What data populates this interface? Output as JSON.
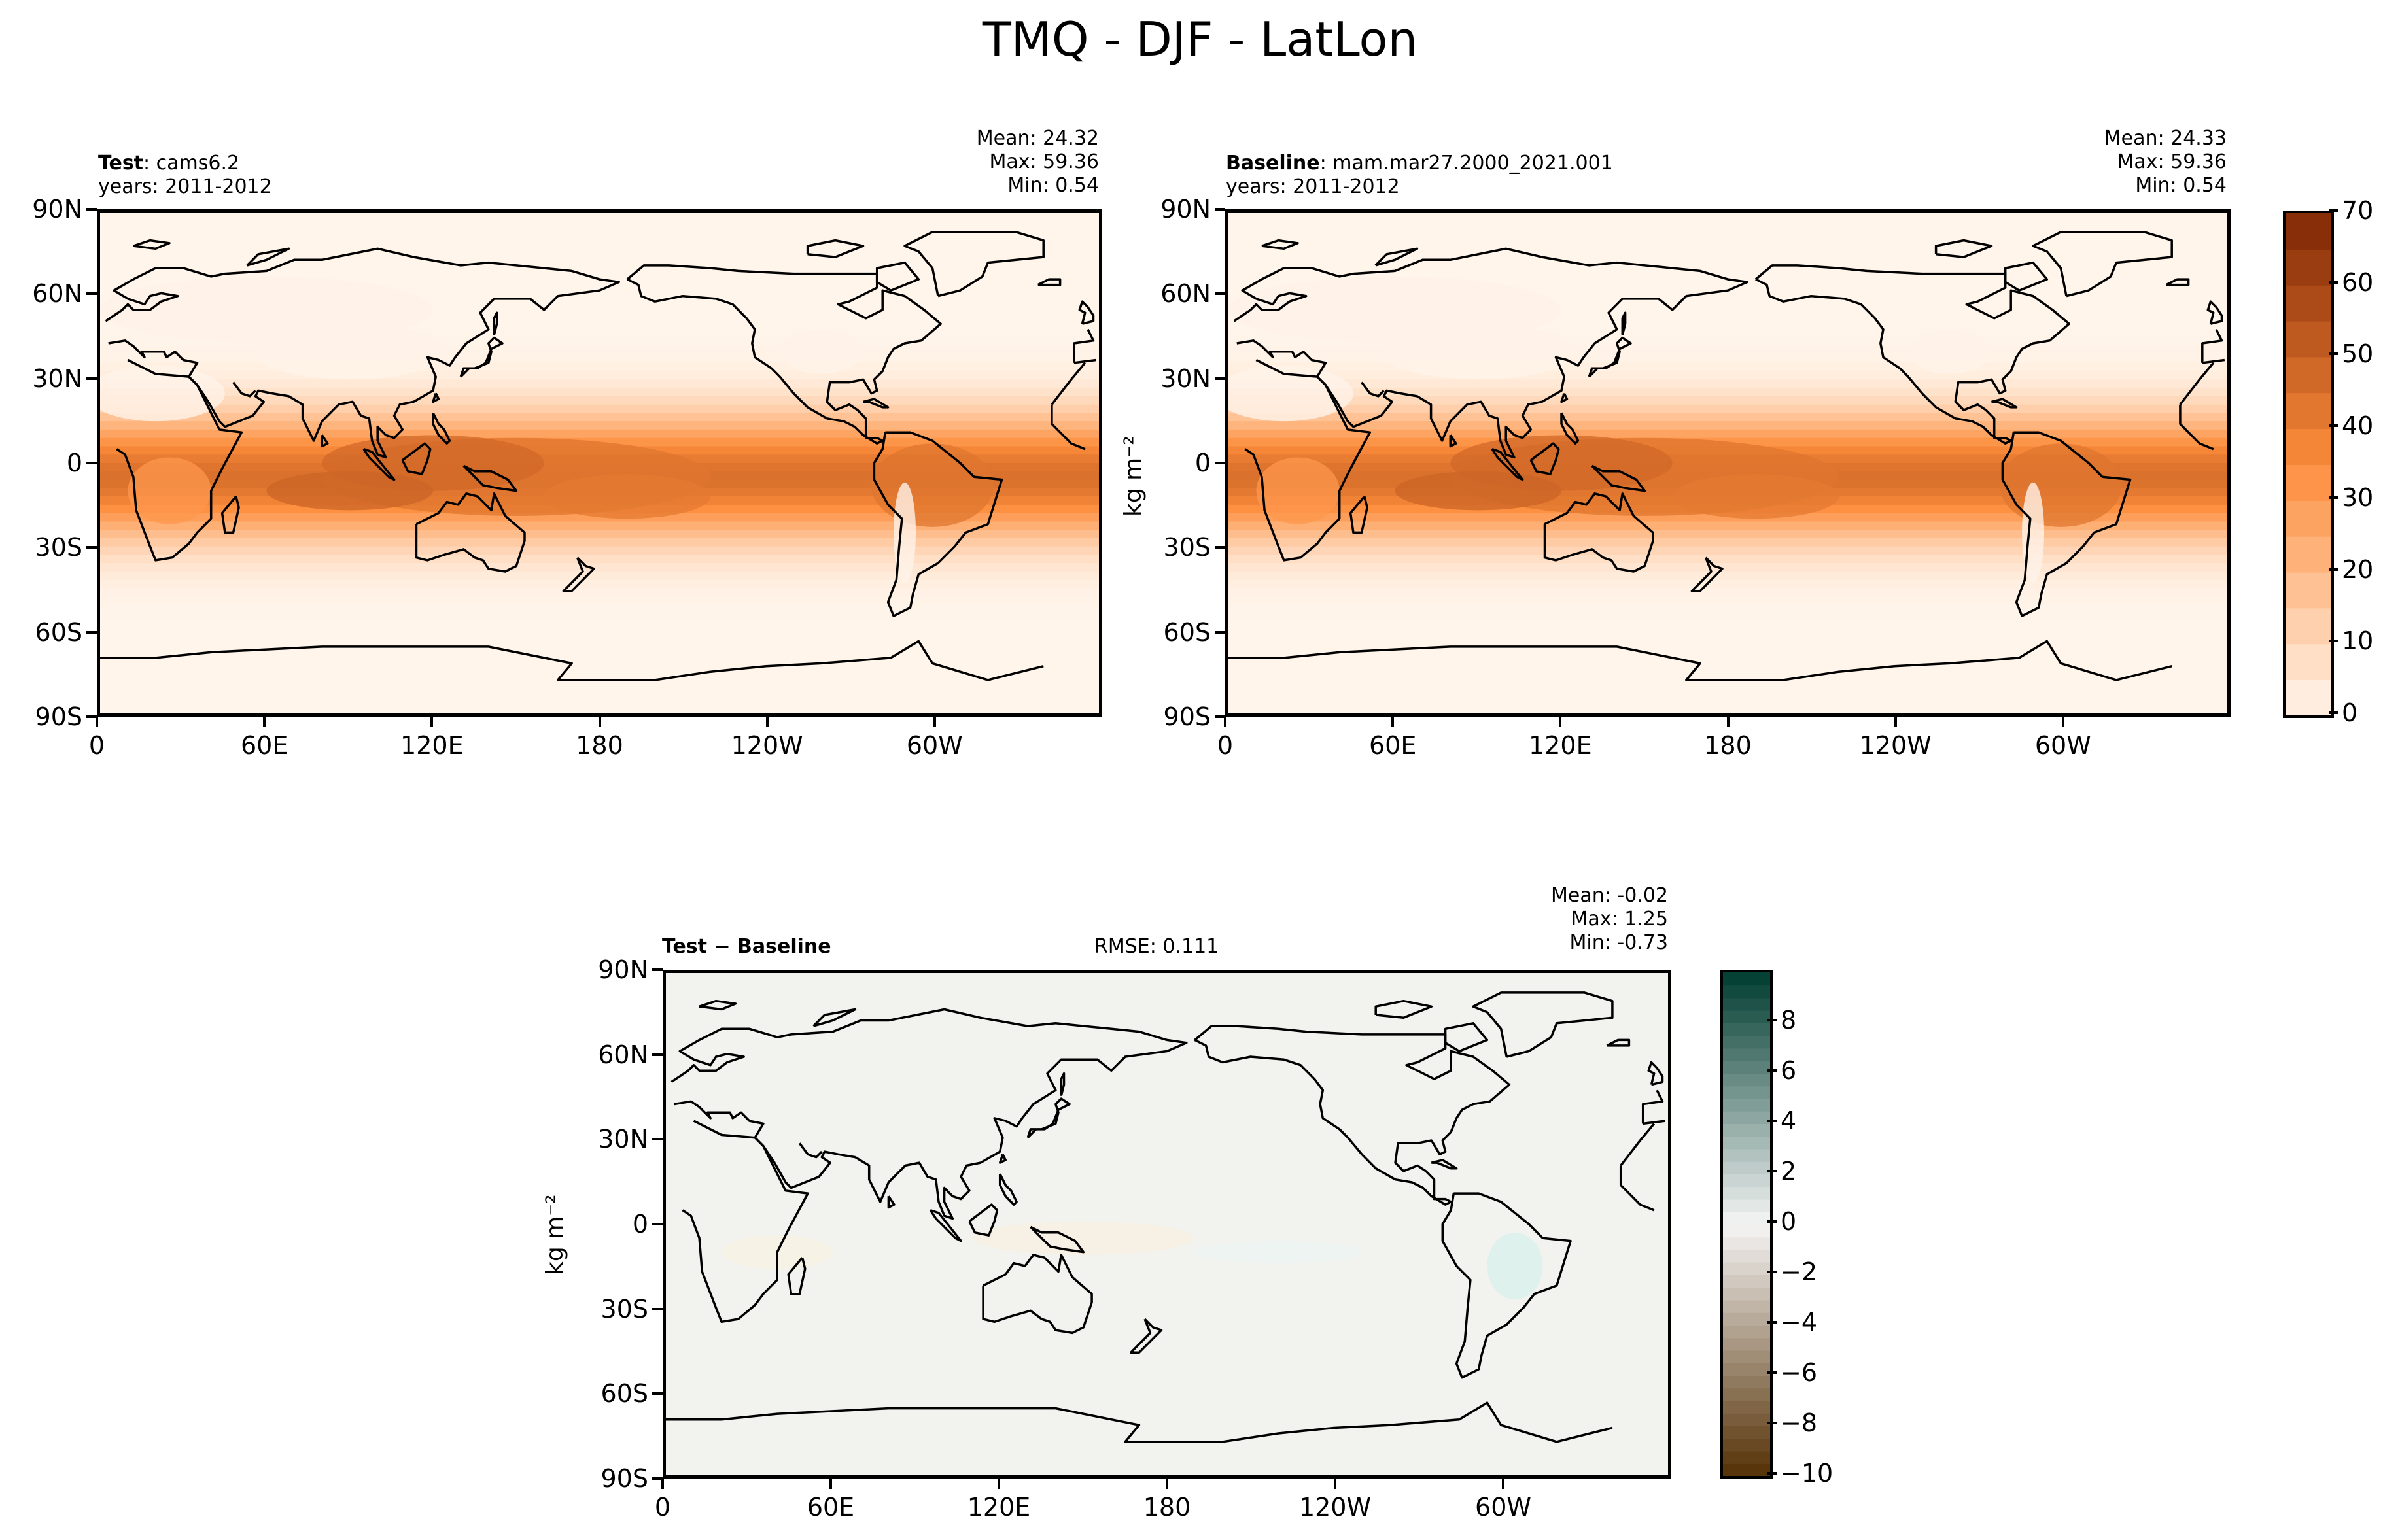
{
  "chart_data": [
    {
      "type": "heatmap",
      "title": "TMQ - DJF - LatLon",
      "panel_left_title_bold": "Test",
      "panel_left_title_rest": ": cams6.2",
      "panel_left_years": "years: 2011-2012",
      "stats": {
        "mean_label": "Mean: 24.32",
        "max_label": "Max: 59.36",
        "min_label": "Min:  0.54"
      },
      "x_ticks": [
        "0",
        "60E",
        "120E",
        "180",
        "120W",
        "60W"
      ],
      "y_ticks": [
        "90N",
        "60N",
        "30N",
        "0",
        "30S",
        "60S",
        "90S"
      ],
      "field_summary": {
        "mean": 24.32,
        "max": 59.36,
        "min": 0.54
      }
    },
    {
      "type": "heatmap",
      "panel_left_title_bold": "Baseline",
      "panel_left_title_rest": ": mam.mar27.2000_2021.001",
      "panel_left_years": "years: 2011-2012",
      "stats": {
        "mean_label": "Mean: 24.33",
        "max_label": "Max: 59.36",
        "min_label": "Min:  0.54"
      },
      "x_ticks": [
        "0",
        "60E",
        "120E",
        "180",
        "120W",
        "60W"
      ],
      "y_ticks": [
        "90N",
        "60N",
        "30N",
        "0",
        "30S",
        "60S",
        "90S"
      ],
      "ylabel": "kg m⁻²",
      "colorbar": {
        "ticks": [
          "0",
          "10",
          "20",
          "30",
          "40",
          "50",
          "60",
          "70"
        ],
        "range": [
          0,
          70
        ]
      },
      "field_summary": {
        "mean": 24.33,
        "max": 59.36,
        "min": 0.54
      }
    },
    {
      "type": "heatmap",
      "panel_left_title_bold": "Test − Baseline",
      "rmse_label": "RMSE: 0.111",
      "stats": {
        "mean_label": "Mean: -0.02",
        "max_label": "Max:  1.25",
        "min_label": "Min: -0.73"
      },
      "x_ticks": [
        "0",
        "60E",
        "120E",
        "180",
        "120W",
        "60W"
      ],
      "y_ticks": [
        "90N",
        "60N",
        "30N",
        "0",
        "30S",
        "60S",
        "90S"
      ],
      "ylabel": "kg m⁻²",
      "colorbar": {
        "ticks": [
          "8",
          "6",
          "4",
          "2",
          "0",
          "−2",
          "−4",
          "−6",
          "−8",
          "−10"
        ],
        "range": [
          -10,
          10
        ]
      },
      "field_summary": {
        "mean": -0.02,
        "max": 1.25,
        "min": -0.73,
        "rmse": 0.111
      }
    }
  ],
  "colors": {
    "seq_low": "#fff5eb",
    "seq_mid": "#fd8d3c",
    "seq_high": "#7f2704",
    "div_low": "#543005",
    "div_mid": "#f5f5f5",
    "div_high": "#003c30",
    "coast": "#000000"
  }
}
